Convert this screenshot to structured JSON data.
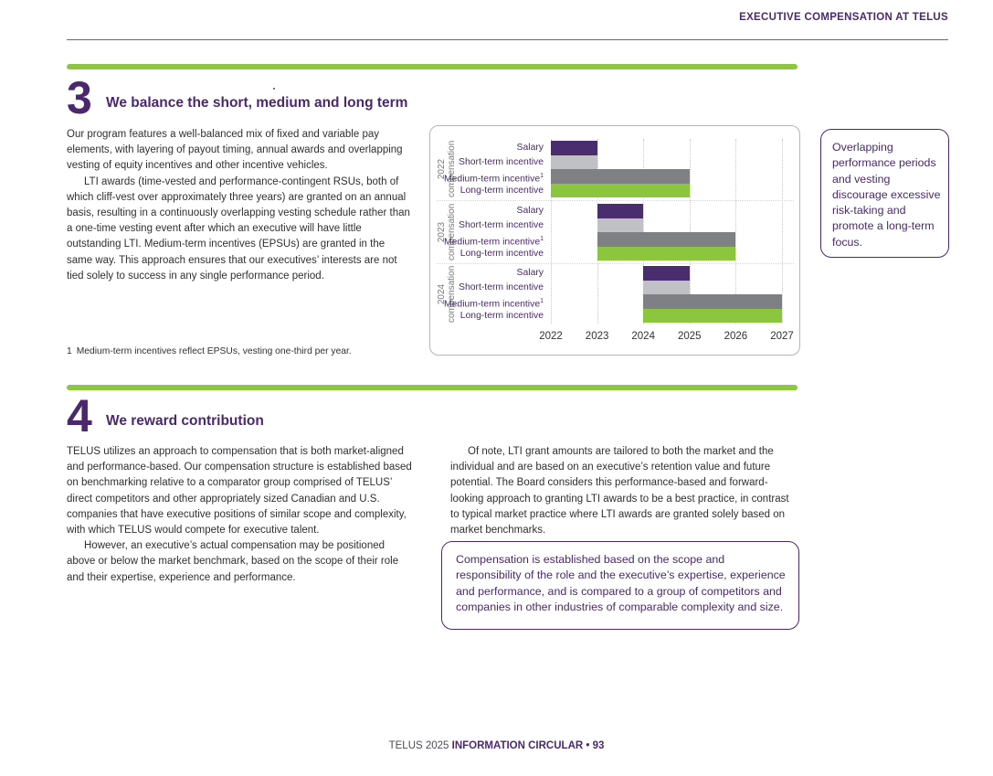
{
  "page": {
    "header": "EXECUTIVE COMPENSATION AT TELUS",
    "footer": {
      "prefix": "TELUS 2025 ",
      "bold": "INFORMATION CIRCULAR • 93"
    }
  },
  "section3": {
    "number": "3",
    "title": "We balance the short, medium and long term",
    "paragraph1": "Our program features a well-balanced mix of fixed and variable pay elements, with layering of payout timing, annual awards and overlapping vesting of equity incentives and other incentive vehicles.",
    "paragraph2": "LTI awards (time-vested and performance-contingent RSUs, both of which cliff-vest over approximately three years) are granted on an annual basis, resulting in a continuously overlapping vesting schedule rather than a one-time vesting event after which an executive will have little outstanding LTI. Medium-term incentives (EPSUs) are granted in the same way. This approach ensures that our executives’ interests are not tied solely to success in any single performance period.",
    "footnote_number": "1",
    "footnote_text": "Medium-term incentives reflect EPSUs, vesting one-third per year.",
    "callout": "Overlapping performance periods and vesting discourage excessive risk-taking and promote a long-term focus."
  },
  "section4": {
    "number": "4",
    "title": "We reward contribution",
    "left_paragraph1": "TELUS utilizes an approach to compensation that is both market-aligned and performance-based. Our compensation structure is established based on benchmarking relative to a comparator group comprised of TELUS’ direct competitors and other appropriately sized Canadian and U.S. companies that have executive positions of similar scope and complexity, with which TELUS would compete for executive talent.",
    "left_paragraph2": "However, an executive’s actual compensation may be positioned above or below the market benchmark, based on the scope of their role and their expertise, experience and performance.",
    "right_paragraph1": "Of note, LTI grant amounts are tailored to both the market and the individual and are based on an executive’s retention value and future potential. The Board considers this performance-based and forward-looking approach to granting LTI awards to be a best practice, in contrast to typical market practice where LTI awards are granted solely based on market benchmarks.",
    "callout": "Compensation is established based on the scope and responsibility of the role and the executive’s expertise, experience and performance, and is compared to a group of competitors and companies in other industries of comparable complexity and size."
  },
  "chart_data": {
    "type": "bar",
    "variant": "gantt-timeline",
    "title": "",
    "x_range": [
      2022,
      2027
    ],
    "x_ticks": [
      2022,
      2023,
      2024,
      2025,
      2026,
      2027
    ],
    "grid": "vertical-dotted",
    "legend_position": "none",
    "row_label_superscript": [
      null,
      null,
      "1",
      null
    ],
    "colors": {
      "salary": "#4a2d6e",
      "short": "#c0c1c5",
      "medium": "#7e8083",
      "long": "#8cc63f"
    },
    "groups": [
      {
        "year": "2022",
        "label": "compensation",
        "bars": [
          {
            "row": "Salary",
            "start": 2022,
            "end": 2023,
            "color_key": "salary"
          },
          {
            "row": "Short-term incentive",
            "start": 2022,
            "end": 2023,
            "color_key": "short"
          },
          {
            "row": "Medium-term incentive",
            "start": 2022,
            "end": 2025,
            "color_key": "medium"
          },
          {
            "row": "Long-term incentive",
            "start": 2022,
            "end": 2025,
            "color_key": "long"
          }
        ]
      },
      {
        "year": "2023",
        "label": "compensation",
        "bars": [
          {
            "row": "Salary",
            "start": 2023,
            "end": 2024,
            "color_key": "salary"
          },
          {
            "row": "Short-term incentive",
            "start": 2023,
            "end": 2024,
            "color_key": "short"
          },
          {
            "row": "Medium-term incentive",
            "start": 2023,
            "end": 2026,
            "color_key": "medium"
          },
          {
            "row": "Long-term incentive",
            "start": 2023,
            "end": 2026,
            "color_key": "long"
          }
        ]
      },
      {
        "year": "2024",
        "label": "compensation",
        "bars": [
          {
            "row": "Salary",
            "start": 2024,
            "end": 2025,
            "color_key": "salary"
          },
          {
            "row": "Short-term incentive",
            "start": 2024,
            "end": 2025,
            "color_key": "short"
          },
          {
            "row": "Medium-term incentive",
            "start": 2024,
            "end": 2027,
            "color_key": "medium"
          },
          {
            "row": "Long-term incentive",
            "start": 2024,
            "end": 2027,
            "color_key": "long"
          }
        ]
      }
    ]
  },
  "colors": {
    "brand_purple": "#4B286D",
    "brand_green": "#8DC63F"
  }
}
